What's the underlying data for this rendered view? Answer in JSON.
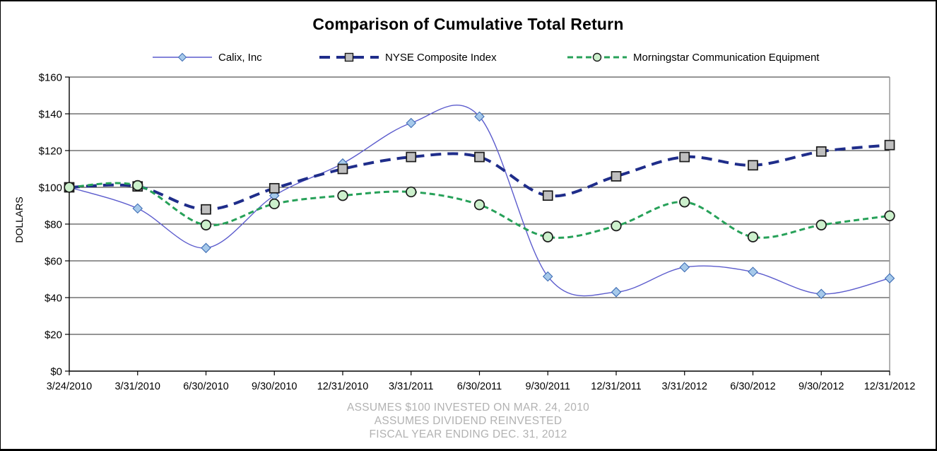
{
  "chart_data": {
    "type": "line",
    "title": "Comparison of Cumulative Total Return",
    "xlabel": "",
    "ylabel": "DOLLARS",
    "ylim": [
      0,
      160
    ],
    "ytick_step": 20,
    "ytick_labels": [
      "$0",
      "$20",
      "$40",
      "$60",
      "$80",
      "$100",
      "$120",
      "$140",
      "$160"
    ],
    "grid": true,
    "legend_position": "top",
    "line_smoothing": true,
    "categories": [
      "3/24/2010",
      "3/31/2010",
      "6/30/2010",
      "9/30/2010",
      "12/31/2010",
      "3/31/2011",
      "6/30/2011",
      "9/30/2011",
      "12/31/2011",
      "3/31/2012",
      "6/30/2012",
      "9/30/2012",
      "12/31/2012"
    ],
    "series": [
      {
        "name": "Calix, Inc",
        "values": [
          100,
          88.5,
          67,
          95.5,
          113,
          135,
          138.5,
          51.5,
          43,
          56.5,
          54,
          42,
          50.5
        ],
        "color": "#5c5ccd",
        "line_width": 1.4,
        "dash": "none",
        "marker": "diamond",
        "marker_fill": "#a6c9ea",
        "marker_stroke": "#3f6eb5"
      },
      {
        "name": "NYSE Composite Index",
        "values": [
          100,
          100.5,
          88,
          99.5,
          110,
          116.5,
          116.5,
          95.5,
          106,
          116.5,
          112,
          119.5,
          123
        ],
        "color": "#1f2d8a",
        "line_width": 4,
        "dash": "15 9",
        "marker": "square",
        "marker_fill": "#bfbfbf",
        "marker_stroke": "#1a1a1a"
      },
      {
        "name": "Morningstar Communication Equipment",
        "values": [
          100,
          101,
          79.5,
          91,
          95.5,
          97.5,
          90.5,
          73,
          79,
          92,
          73,
          79.5,
          84.5
        ],
        "color": "#27a159",
        "line_width": 3,
        "dash": "8 5",
        "marker": "circle",
        "marker_fill": "#ccf0cc",
        "marker_stroke": "#1a1a1a"
      }
    ]
  },
  "footer": {
    "lines": [
      "ASSUMES $100 INVESTED ON MAR. 24, 2010",
      "ASSUMES DIVIDEND REINVESTED",
      "FISCAL YEAR ENDING DEC. 31, 2012"
    ],
    "text_color": "#b2b2b2"
  },
  "colors": {
    "background": "#ffffff",
    "axis": "#000000",
    "gridline": "#2b2b2b",
    "plot_right_border": "#999999"
  }
}
